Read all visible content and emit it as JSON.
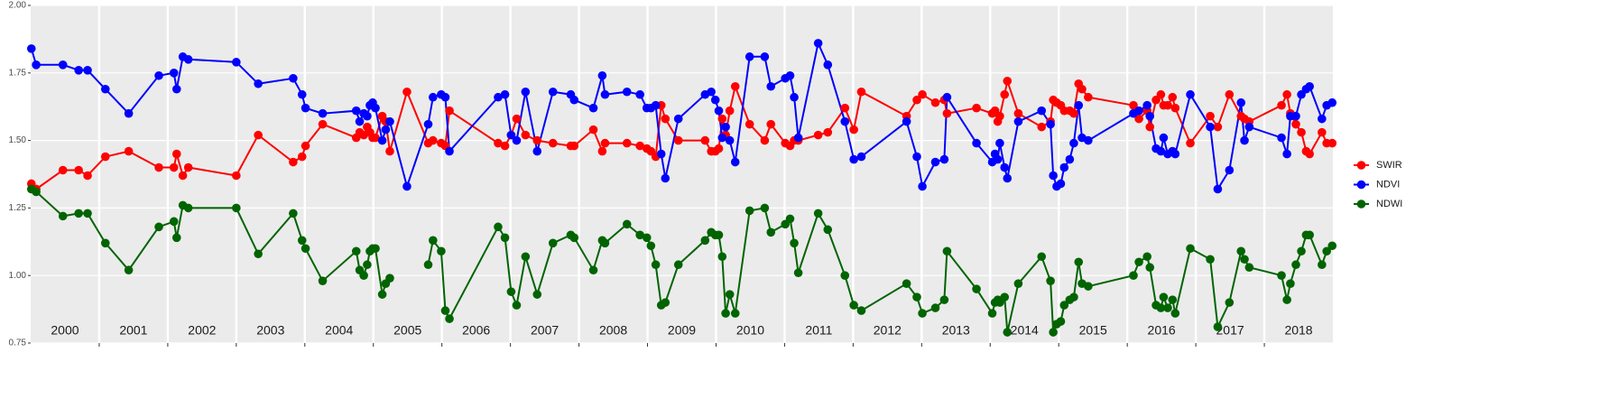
{
  "chart_data": {
    "type": "line",
    "x": [
      2000.01,
      2000.08,
      2000.47,
      2000.7,
      2000.83,
      2001.09,
      2001.43,
      2001.87,
      2002.09,
      2002.13,
      2002.22,
      2002.3,
      2003.0,
      2003.32,
      2003.83,
      2003.96,
      2004.01,
      2004.26,
      2004.75,
      2004.8,
      2004.86,
      2004.91,
      2004.95,
      2004.99,
      2005.03,
      2005.13,
      2005.18,
      2005.24,
      2005.49,
      2005.8,
      2005.87,
      2005.99,
      2006.05,
      2006.11,
      2006.82,
      2006.92,
      2007.01,
      2007.09,
      2007.22,
      2007.39,
      2007.62,
      2007.88,
      2007.93,
      2008.21,
      2008.34,
      2008.38,
      2008.7,
      2008.89,
      2008.99,
      2009.05,
      2009.12,
      2009.2,
      2009.26,
      2009.45,
      2009.84,
      2009.93,
      2009.99,
      2010.04,
      2010.09,
      2010.14,
      2010.2,
      2010.28,
      2010.49,
      2010.71,
      2010.8,
      2011.01,
      2011.08,
      2011.14,
      2011.2,
      2011.49,
      2011.63,
      2011.88,
      2012.01,
      2012.12,
      2012.78,
      2012.93,
      2013.01,
      2013.2,
      2013.33,
      2013.37,
      2013.8,
      2014.03,
      2014.07,
      2014.11,
      2014.14,
      2014.21,
      2014.25,
      2014.41,
      2014.75,
      2014.88,
      2014.92,
      2014.97,
      2015.03,
      2015.08,
      2015.16,
      2015.22,
      2015.29,
      2015.34,
      2015.43,
      2016.09,
      2016.17,
      2016.29,
      2016.33,
      2016.42,
      2016.49,
      2016.53,
      2016.59,
      2016.66,
      2016.7,
      2016.92,
      2017.21,
      2017.32,
      2017.49,
      2017.66,
      2017.71,
      2017.78,
      2018.25,
      2018.33,
      2018.38,
      2018.46,
      2018.54,
      2018.61,
      2018.66,
      2018.84,
      2018.91,
      2018.99
    ],
    "series": [
      {
        "name": "SWIR",
        "color": "#ff0000",
        "values": [
          1.34,
          1.32,
          1.39,
          1.39,
          1.37,
          1.44,
          1.46,
          1.4,
          1.4,
          1.45,
          1.37,
          1.4,
          1.37,
          1.52,
          1.42,
          1.44,
          1.48,
          1.56,
          1.51,
          1.53,
          1.52,
          1.55,
          1.53,
          1.51,
          1.51,
          1.59,
          1.57,
          1.46,
          1.68,
          1.49,
          1.5,
          1.49,
          1.48,
          1.61,
          1.49,
          1.48,
          1.52,
          1.58,
          1.52,
          1.5,
          1.49,
          1.48,
          1.48,
          1.54,
          1.46,
          1.49,
          1.49,
          1.48,
          1.47,
          1.46,
          1.44,
          1.63,
          1.58,
          1.5,
          1.5,
          1.46,
          1.46,
          1.47,
          1.58,
          1.52,
          1.61,
          1.7,
          1.56,
          1.5,
          1.56,
          1.49,
          1.48,
          1.5,
          1.5,
          1.52,
          1.53,
          1.62,
          1.54,
          1.68,
          1.59,
          1.65,
          1.67,
          1.64,
          1.65,
          1.6,
          1.62,
          1.6,
          1.61,
          1.57,
          1.59,
          1.67,
          1.72,
          1.6,
          1.55,
          1.57,
          1.65,
          1.64,
          1.63,
          1.61,
          1.61,
          1.6,
          1.71,
          1.69,
          1.66,
          1.63,
          1.58,
          1.61,
          1.55,
          1.65,
          1.67,
          1.63,
          1.63,
          1.66,
          1.62,
          1.49,
          1.59,
          1.55,
          1.67,
          1.59,
          1.58,
          1.57,
          1.63,
          1.67,
          1.6,
          1.56,
          1.53,
          1.46,
          1.45,
          1.53,
          1.49,
          1.49
        ]
      },
      {
        "name": "NDVI",
        "color": "#0000ff",
        "values": [
          1.84,
          1.78,
          1.78,
          1.76,
          1.76,
          1.69,
          1.6,
          1.74,
          1.75,
          1.69,
          1.81,
          1.8,
          1.79,
          1.71,
          1.73,
          1.67,
          1.62,
          1.6,
          1.61,
          1.57,
          1.6,
          1.59,
          1.63,
          1.64,
          1.62,
          1.5,
          1.54,
          1.57,
          1.33,
          1.56,
          1.66,
          1.67,
          1.66,
          1.46,
          1.66,
          1.67,
          1.52,
          1.5,
          1.68,
          1.46,
          1.68,
          1.67,
          1.65,
          1.62,
          1.74,
          1.67,
          1.68,
          1.67,
          1.62,
          1.62,
          1.63,
          1.45,
          1.36,
          1.58,
          1.67,
          1.68,
          1.65,
          1.61,
          1.51,
          1.55,
          1.5,
          1.42,
          1.81,
          1.81,
          1.7,
          1.73,
          1.74,
          1.66,
          1.51,
          1.86,
          1.78,
          1.57,
          1.43,
          1.44,
          1.57,
          1.44,
          1.33,
          1.42,
          1.43,
          1.66,
          1.49,
          1.42,
          1.45,
          1.43,
          1.49,
          1.4,
          1.36,
          1.57,
          1.61,
          1.56,
          1.37,
          1.33,
          1.34,
          1.4,
          1.43,
          1.49,
          1.63,
          1.51,
          1.5,
          1.6,
          1.61,
          1.63,
          1.59,
          1.47,
          1.46,
          1.51,
          1.45,
          1.46,
          1.45,
          1.67,
          1.55,
          1.32,
          1.39,
          1.64,
          1.5,
          1.55,
          1.51,
          1.45,
          1.59,
          1.59,
          1.67,
          1.69,
          1.7,
          1.58,
          1.63,
          1.64
        ]
      },
      {
        "name": "NDWI",
        "color": "#006400",
        "values": [
          1.32,
          1.31,
          1.22,
          1.23,
          1.23,
          1.12,
          1.02,
          1.18,
          1.2,
          1.14,
          1.26,
          1.25,
          1.25,
          1.08,
          1.23,
          1.13,
          1.1,
          0.98,
          1.09,
          1.02,
          1.0,
          1.04,
          1.09,
          1.1,
          1.1,
          0.93,
          0.97,
          0.99,
          null,
          1.04,
          1.13,
          1.09,
          0.87,
          0.84,
          1.18,
          1.14,
          0.94,
          0.89,
          1.07,
          0.93,
          1.12,
          1.15,
          1.14,
          1.02,
          1.13,
          1.12,
          1.19,
          1.15,
          1.14,
          1.11,
          1.04,
          0.89,
          0.9,
          1.04,
          1.13,
          1.16,
          1.15,
          1.15,
          1.07,
          0.86,
          0.93,
          0.86,
          1.24,
          1.25,
          1.16,
          1.19,
          1.21,
          1.12,
          1.01,
          1.23,
          1.17,
          1.0,
          0.89,
          0.87,
          0.97,
          0.92,
          0.86,
          0.88,
          0.91,
          1.09,
          0.95,
          0.86,
          0.9,
          0.91,
          0.9,
          0.92,
          0.79,
          0.97,
          1.07,
          0.98,
          0.79,
          0.82,
          0.83,
          0.89,
          0.91,
          0.92,
          1.05,
          0.97,
          0.96,
          1.0,
          1.05,
          1.07,
          1.03,
          0.89,
          0.88,
          0.92,
          0.88,
          0.91,
          0.86,
          1.1,
          1.06,
          0.81,
          0.9,
          1.09,
          1.06,
          1.03,
          1.0,
          0.91,
          0.97,
          1.04,
          1.09,
          1.15,
          1.15,
          1.04,
          1.09,
          1.11
        ]
      }
    ],
    "xlim": [
      2000,
      2019
    ],
    "xticks": [
      {
        "value": 2000.5,
        "label": "2000"
      },
      {
        "value": 2001.5,
        "label": "2001"
      },
      {
        "value": 2002.5,
        "label": "2002"
      },
      {
        "value": 2003.5,
        "label": "2003"
      },
      {
        "value": 2004.5,
        "label": "2004"
      },
      {
        "value": 2005.5,
        "label": "2005"
      },
      {
        "value": 2006.5,
        "label": "2006"
      },
      {
        "value": 2007.5,
        "label": "2007"
      },
      {
        "value": 2008.5,
        "label": "2008"
      },
      {
        "value": 2009.5,
        "label": "2009"
      },
      {
        "value": 2010.5,
        "label": "2010"
      },
      {
        "value": 2011.5,
        "label": "2011"
      },
      {
        "value": 2012.5,
        "label": "2012"
      },
      {
        "value": 2013.5,
        "label": "2013"
      },
      {
        "value": 2014.5,
        "label": "2014"
      },
      {
        "value": 2015.5,
        "label": "2015"
      },
      {
        "value": 2016.5,
        "label": "2016"
      },
      {
        "value": 2017.5,
        "label": "2017"
      },
      {
        "value": 2018.5,
        "label": "2018"
      }
    ],
    "xgrid": [
      2001,
      2002,
      2003,
      2004,
      2005,
      2006,
      2007,
      2008,
      2009,
      2010,
      2011,
      2012,
      2013,
      2014,
      2015,
      2016,
      2017,
      2018
    ],
    "ylim": [
      0.75,
      2.0
    ],
    "yticks": [
      {
        "value": 0.75,
        "label": "0.75"
      },
      {
        "value": 1.0,
        "label": "1.00"
      },
      {
        "value": 1.25,
        "label": "1.25"
      },
      {
        "value": 1.5,
        "label": "1.50"
      },
      {
        "value": 1.75,
        "label": "1.75"
      },
      {
        "value": 2.0,
        "label": "2.00"
      }
    ],
    "grid": true,
    "legend": "right"
  }
}
